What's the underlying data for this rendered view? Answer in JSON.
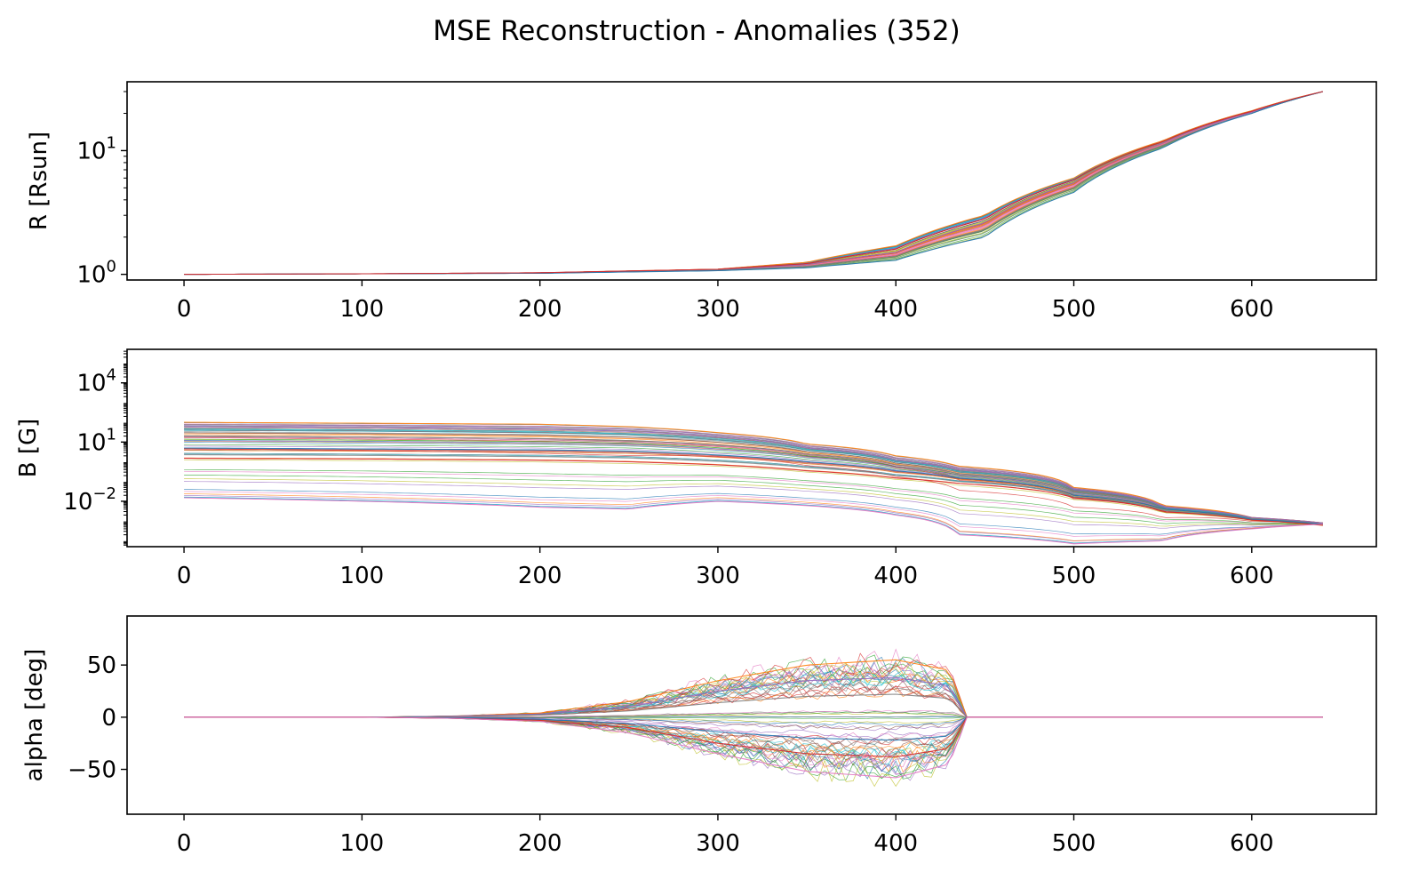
{
  "title": "MSE Reconstruction - Anomalies (352)",
  "chart_data": [
    {
      "type": "line",
      "ylabel": "R [Rsun]",
      "yscale": "log",
      "xlim": [
        -32,
        670
      ],
      "ylim": [
        0.9,
        36
      ],
      "x_ticks": [
        0,
        100,
        200,
        300,
        400,
        500,
        600
      ],
      "x_tick_labels": [
        "0",
        "100",
        "200",
        "300",
        "400",
        "500",
        "600"
      ],
      "y_ticks": [
        1,
        10
      ],
      "y_tick_labels": [
        {
          "base": "10",
          "exp": "0"
        },
        {
          "base": "10",
          "exp": "1"
        }
      ],
      "legend": "none",
      "grid": false,
      "series_count_note": "352",
      "series": [
        {
          "x": [
            0,
            100,
            200,
            300,
            350,
            400,
            450,
            500,
            550,
            600,
            640
          ],
          "values": [
            1.0,
            1.01,
            1.03,
            1.1,
            1.25,
            1.7,
            3.0,
            6.0,
            12.0,
            21.0,
            30.0
          ]
        },
        {
          "x": [
            0,
            100,
            200,
            300,
            350,
            400,
            450,
            500,
            550,
            600,
            640
          ],
          "values": [
            1.0,
            1.01,
            1.03,
            1.09,
            1.2,
            1.5,
            2.6,
            5.5,
            11.5,
            20.5,
            30.0
          ]
        },
        {
          "x": [
            0,
            100,
            200,
            300,
            350,
            400,
            450,
            500,
            550,
            600,
            640
          ],
          "values": [
            1.0,
            1.01,
            1.02,
            1.08,
            1.16,
            1.4,
            2.3,
            5.0,
            11.0,
            20.0,
            30.0
          ]
        },
        {
          "x": [
            0,
            100,
            200,
            300,
            350,
            400,
            450,
            500,
            550,
            600,
            640
          ],
          "values": [
            1.0,
            1.01,
            1.02,
            1.07,
            1.13,
            1.3,
            2.0,
            4.6,
            10.5,
            20.0,
            30.0
          ]
        },
        {
          "x": [
            0,
            100,
            200,
            300,
            350,
            400,
            450,
            500,
            550,
            600,
            640
          ],
          "values": [
            1.0,
            1.01,
            1.03,
            1.1,
            1.22,
            1.6,
            2.8,
            5.8,
            11.8,
            20.8,
            30.0
          ]
        }
      ]
    },
    {
      "type": "line",
      "ylabel": "B [G]",
      "yscale": "log",
      "xlim": [
        -32,
        670
      ],
      "ylim": [
        5e-05,
        500000
      ],
      "x_ticks": [
        0,
        100,
        200,
        300,
        400,
        500,
        600
      ],
      "x_tick_labels": [
        "0",
        "100",
        "200",
        "300",
        "400",
        "500",
        "600"
      ],
      "y_ticks": [
        0.01,
        10,
        10000
      ],
      "y_tick_labels": [
        {
          "base": "10",
          "exp": "−2"
        },
        {
          "base": "10",
          "exp": "1"
        },
        {
          "base": "10",
          "exp": "4"
        }
      ],
      "legend": "none",
      "grid": false,
      "series": [
        {
          "x": [
            0,
            100,
            200,
            250,
            300,
            350,
            400,
            435,
            500,
            550,
            600,
            640
          ],
          "values": [
            100,
            90,
            80,
            60,
            30,
            8,
            2,
            0.6,
            0.05,
            0.006,
            0.0015,
            0.0008
          ]
        },
        {
          "x": [
            0,
            100,
            200,
            250,
            300,
            350,
            400,
            435,
            500,
            550,
            600,
            640
          ],
          "values": [
            60,
            55,
            45,
            35,
            18,
            5,
            1.2,
            0.4,
            0.04,
            0.005,
            0.0015,
            0.0008
          ]
        },
        {
          "x": [
            0,
            100,
            200,
            250,
            300,
            350,
            400,
            435,
            500,
            550,
            600,
            640
          ],
          "values": [
            20,
            18,
            15,
            12,
            7,
            2.5,
            0.7,
            0.25,
            0.03,
            0.004,
            0.0013,
            0.0007
          ]
        },
        {
          "x": [
            0,
            100,
            200,
            250,
            300,
            350,
            400,
            435,
            500,
            550,
            600,
            640
          ],
          "values": [
            5,
            4.5,
            4,
            3.5,
            2.2,
            1,
            0.35,
            0.15,
            0.02,
            0.004,
            0.0012,
            0.0007
          ]
        },
        {
          "x": [
            0,
            100,
            200,
            250,
            300,
            350,
            400,
            435,
            500,
            550,
            600,
            640
          ],
          "values": [
            1.5,
            1.4,
            1.2,
            1.0,
            0.7,
            0.35,
            0.15,
            0.08,
            0.015,
            0.003,
            0.0011,
            0.0006
          ]
        },
        {
          "x": [
            0,
            100,
            200,
            250,
            300,
            350,
            400,
            435,
            500,
            550,
            600,
            640
          ],
          "values": [
            0.015,
            0.01,
            0.005,
            0.004,
            0.01,
            0.006,
            0.002,
            0.0002,
            7e-05,
            0.0001,
            0.0004,
            0.0007
          ]
        }
      ]
    },
    {
      "type": "line",
      "ylabel": "alpha [deg]",
      "yscale": "linear",
      "xlim": [
        -32,
        670
      ],
      "ylim": [
        -93,
        97
      ],
      "x_ticks": [
        0,
        100,
        200,
        300,
        400,
        500,
        600
      ],
      "x_tick_labels": [
        "0",
        "100",
        "200",
        "300",
        "400",
        "500",
        "600"
      ],
      "y_ticks": [
        -50,
        0,
        50
      ],
      "y_tick_labels": [
        "−50",
        "0",
        "50"
      ],
      "legend": "none",
      "grid": false,
      "series": [
        {
          "x": [
            0,
            100,
            150,
            200,
            250,
            300,
            350,
            400,
            430,
            440,
            640
          ],
          "values": [
            0,
            0,
            1,
            4,
            15,
            35,
            50,
            55,
            45,
            0,
            0
          ]
        },
        {
          "x": [
            0,
            100,
            150,
            200,
            250,
            300,
            350,
            400,
            430,
            440,
            640
          ],
          "values": [
            0,
            0,
            1,
            3,
            10,
            25,
            35,
            38,
            30,
            0,
            0
          ]
        },
        {
          "x": [
            0,
            100,
            150,
            200,
            250,
            300,
            350,
            400,
            430,
            440,
            640
          ],
          "values": [
            0,
            0,
            0.5,
            2,
            6,
            14,
            20,
            22,
            18,
            0,
            0
          ]
        },
        {
          "x": [
            0,
            100,
            150,
            200,
            250,
            300,
            350,
            400,
            430,
            440,
            640
          ],
          "values": [
            0,
            0,
            -0.5,
            -2,
            -6,
            -14,
            -20,
            -22,
            -18,
            0,
            0
          ]
        },
        {
          "x": [
            0,
            100,
            150,
            200,
            250,
            300,
            350,
            400,
            430,
            440,
            640
          ],
          "values": [
            0,
            0,
            -1,
            -3,
            -10,
            -25,
            -35,
            -38,
            -30,
            0,
            0
          ]
        },
        {
          "x": [
            0,
            100,
            150,
            200,
            250,
            300,
            350,
            400,
            430,
            440,
            640
          ],
          "values": [
            0,
            0,
            -1,
            -4,
            -15,
            -35,
            -52,
            -58,
            -45,
            0,
            0
          ]
        }
      ]
    }
  ],
  "colors": [
    "#1f77b4",
    "#ff7f0e",
    "#2ca02c",
    "#d62728",
    "#9467bd",
    "#8c564b",
    "#e377c2",
    "#7f7f7f",
    "#bcbd22",
    "#17becf"
  ]
}
